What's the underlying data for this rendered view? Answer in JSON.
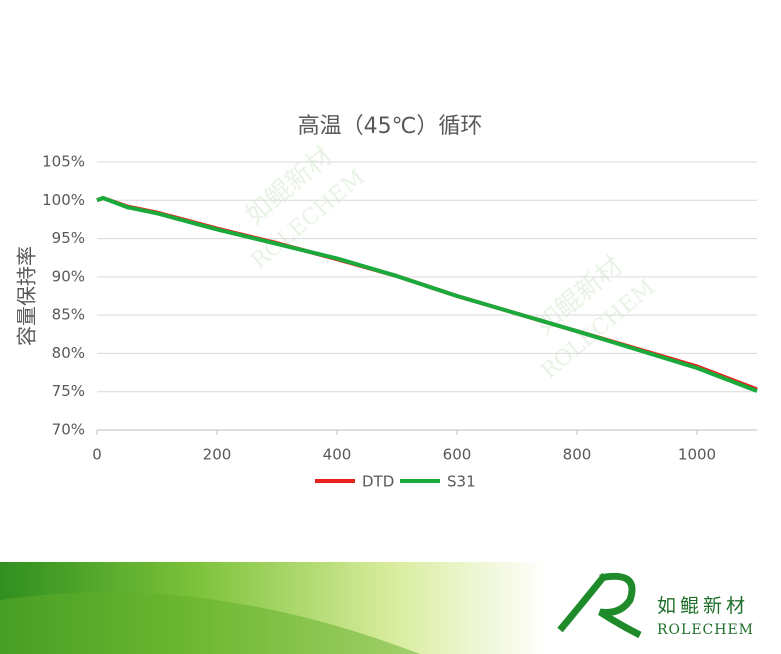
{
  "chart_data": {
    "type": "line",
    "title": "高温（45℃）循环",
    "ylabel": "容量保持率",
    "x": [
      0,
      10,
      50,
      100,
      200,
      300,
      400,
      500,
      600,
      700,
      800,
      900,
      1000,
      1100
    ],
    "series": [
      {
        "name": "DTD",
        "color": "#e8231d",
        "values": [
          100.0,
          100.3,
          99.2,
          98.4,
          96.3,
          94.4,
          92.3,
          90.1,
          87.5,
          85.2,
          82.9,
          80.6,
          78.3,
          75.3
        ]
      },
      {
        "name": "S31",
        "color": "#1aaa3c",
        "values": [
          100.0,
          100.3,
          99.1,
          98.3,
          96.2,
          94.3,
          92.4,
          90.1,
          87.5,
          85.2,
          82.9,
          80.5,
          78.1,
          75.1
        ]
      }
    ],
    "xlim": [
      0,
      1100
    ],
    "xticks": [
      0,
      200,
      400,
      600,
      800,
      1000
    ],
    "ylim": [
      70,
      105
    ],
    "yticks": [
      {
        "value": 70,
        "label": "70%"
      },
      {
        "value": 75,
        "label": "75%"
      },
      {
        "value": 80,
        "label": "80%"
      },
      {
        "value": 85,
        "label": "85%"
      },
      {
        "value": 90,
        "label": "90%"
      },
      {
        "value": 95,
        "label": "95%"
      },
      {
        "value": 100,
        "label": "100%"
      },
      {
        "value": 105,
        "label": "105%"
      }
    ],
    "grid": true,
    "legend": "bottom"
  },
  "branding": {
    "name_cn": "如鲲新材",
    "name_en": "ROLECHEM"
  }
}
